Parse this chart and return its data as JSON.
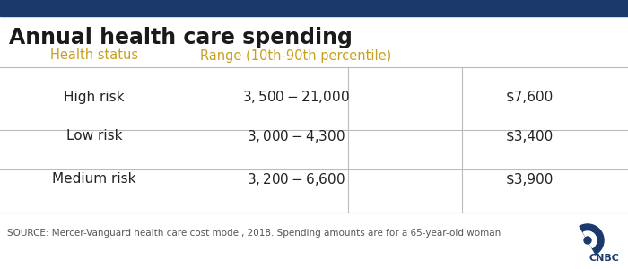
{
  "title": "Annual health care spending",
  "top_bar_color": "#1b3a6b",
  "background_color": "#ffffff",
  "header_text_color": "#c8a020",
  "col_headers": [
    "Health status",
    "Range (10th-90th percentile)"
  ],
  "rows": [
    {
      "label": "High risk",
      "range": "$3,500-$21,000",
      "value": "$7,600"
    },
    {
      "label": "Low risk",
      "range": "$3,000-$4,300",
      "value": "$3,400"
    },
    {
      "label": "Medium risk",
      "range": "$3,200-$6,600",
      "value": "$3,900"
    }
  ],
  "source_text": "SOURCE: Mercer-Vanguard health care cost model, 2018. Spending amounts are for a 65-year-old woman",
  "title_fontsize": 17,
  "header_fontsize": 10.5,
  "cell_fontsize": 11,
  "source_fontsize": 7.5,
  "title_color": "#1a1a1a",
  "cell_text_color": "#222222",
  "grid_color": "#bbbbbb",
  "cnbc_color": "#1b3a6b"
}
